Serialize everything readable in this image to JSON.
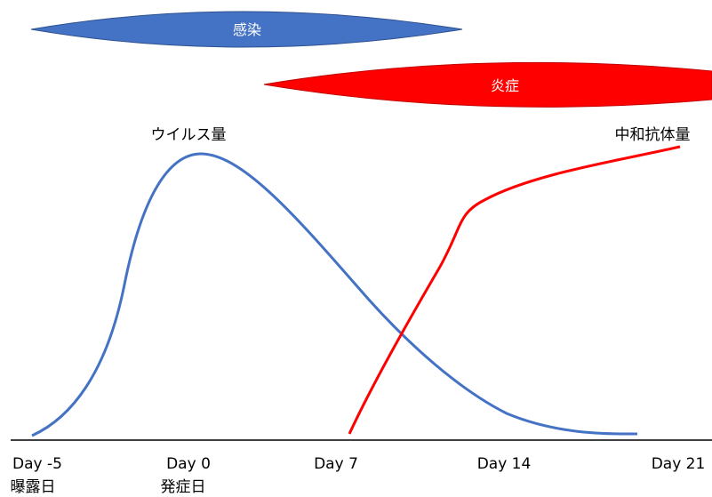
{
  "pills": {
    "infection": {
      "label": "感染",
      "color": "#4472C4"
    },
    "inflammation": {
      "label": "炎症",
      "color": "#FF0000"
    }
  },
  "curves": {
    "virus": {
      "label": "ウイルス量",
      "color": "#4472C4"
    },
    "antibody": {
      "label": "中和抗体量",
      "color": "#FF0000"
    }
  },
  "axis": {
    "ticks": [
      {
        "label": "Day -5",
        "sublabel": "曝露日"
      },
      {
        "label": "Day 0",
        "sublabel": "発症日"
      },
      {
        "label": "Day 7",
        "sublabel": ""
      },
      {
        "label": "Day 14",
        "sublabel": ""
      },
      {
        "label": "Day 21",
        "sublabel": ""
      }
    ]
  }
}
